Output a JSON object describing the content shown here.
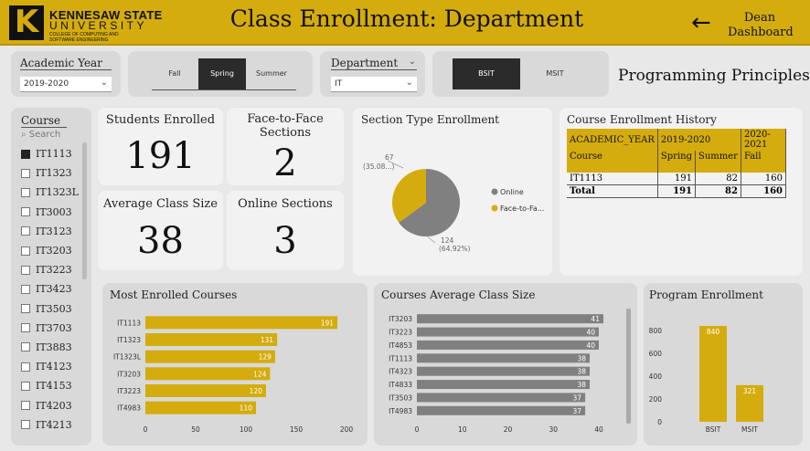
{
  "header": {
    "logo_line1": "KENNESAW STATE",
    "logo_line2": "UNIVERSITY",
    "logo_line3": "COLLEGE OF COMPUTING AND SOFTWARE ENGINEERING",
    "logo_mark": "K",
    "title": "Class Enrollment: Department",
    "back_icon": "←",
    "dean_label": "Dean\nDashboard"
  },
  "filters": {
    "academic_year_label": "Academic Year",
    "academic_year_value": "2019-2020",
    "terms": [
      "Fall",
      "Spring",
      "Summer"
    ],
    "selected_term": "Spring",
    "department_label": "Department",
    "department_value": "IT",
    "programs": [
      "BSIT",
      "MSIT"
    ],
    "selected_program": "BSIT",
    "subject_title": "Programming Principles"
  },
  "course_list": {
    "label": "Course",
    "search_placeholder": "Search",
    "items": [
      "IT1113",
      "IT1323",
      "IT1323L",
      "IT3003",
      "IT3123",
      "IT3203",
      "IT3223",
      "IT3423",
      "IT3503",
      "IT3703",
      "IT3883",
      "IT4123",
      "IT4153",
      "IT4203",
      "IT4213"
    ],
    "checked": "IT1113"
  },
  "kpis": {
    "students_enrolled_label": "Students Enrolled",
    "students_enrolled": "191",
    "f2f_label": "Face-to-Face Sections",
    "f2f": "2",
    "avg_class_label": "Average Class Size",
    "avg_class": "38",
    "online_label": "Online Sections",
    "online": "3"
  },
  "section_type": {
    "title": "Section Type Enrollment",
    "slices": [
      {
        "name": "Online",
        "value": 124,
        "pct": "64.92%",
        "color": "#808080"
      },
      {
        "name": "Face-to-Fa...",
        "value": 67,
        "pct": "35.08...",
        "color": "#d4ac0d"
      }
    ],
    "label_online": "124",
    "label_online_pct": "(64.92%)",
    "label_f2f": "67",
    "label_f2f_pct": "(35.08...)"
  },
  "history": {
    "title": "Course Enrollment History",
    "col_academic_year": "ACADEMIC_YEAR",
    "year1": "2019-2020",
    "year2": "2020-2021",
    "col_course": "Course",
    "col_spring": "Spring",
    "col_summer": "Summer",
    "col_fall": "Fall",
    "row1": {
      "course": "IT1113",
      "spring": "191",
      "summer": "82",
      "fall": "160"
    },
    "total": {
      "course": "Total",
      "spring": "191",
      "summer": "82",
      "fall": "160"
    }
  },
  "chart_data": [
    {
      "type": "bar",
      "title": "Most Enrolled Courses",
      "orientation": "horizontal",
      "categories": [
        "IT1113",
        "IT1323",
        "IT1323L",
        "IT3203",
        "IT3223",
        "IT4983"
      ],
      "values": [
        191,
        131,
        129,
        124,
        120,
        110
      ],
      "xlim": [
        0,
        200
      ],
      "ticks": [
        0,
        50,
        100,
        150,
        200
      ],
      "color": "#d4ac0d"
    },
    {
      "type": "bar",
      "title": "Courses Average Class Size",
      "orientation": "horizontal",
      "categories": [
        "IT3203",
        "IT3223",
        "IT4853",
        "IT1113",
        "IT4323",
        "IT4833",
        "IT3503",
        "IT4983"
      ],
      "values": [
        41,
        40,
        40,
        38,
        38,
        38,
        37,
        37
      ],
      "xlim": [
        0,
        40
      ],
      "ticks": [
        0,
        10,
        20,
        30,
        40
      ],
      "color": "#808080"
    },
    {
      "type": "bar",
      "title": "Program Enrollment",
      "orientation": "vertical",
      "categories": [
        "BSIT",
        "MSIT"
      ],
      "values": [
        840,
        321
      ],
      "ylim": [
        0,
        800
      ],
      "ticks": [
        0,
        200,
        400,
        600,
        800
      ],
      "color": "#d4ac0d"
    }
  ]
}
